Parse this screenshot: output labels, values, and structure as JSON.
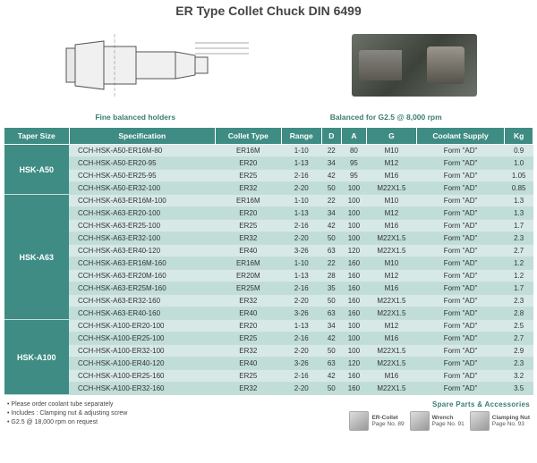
{
  "title": "ER Type Collet Chuck DIN 6499",
  "caption_left": "Fine balanced holders",
  "caption_right": "Balanced for G2.5 @ 8,000 rpm",
  "columns": [
    "Taper Size",
    "Specification",
    "Collet Type",
    "Range",
    "D",
    "A",
    "G",
    "Coolant Supply",
    "Kg"
  ],
  "groups": [
    {
      "taper": "HSK-A50",
      "rows": [
        [
          "CCH-HSK-A50-ER16M-80",
          "ER16M",
          "1-10",
          "22",
          "80",
          "M10",
          "Form \"AD\"",
          "0.9"
        ],
        [
          "CCH-HSK-A50-ER20-95",
          "ER20",
          "1-13",
          "34",
          "95",
          "M12",
          "Form \"AD\"",
          "1.0"
        ],
        [
          "CCH-HSK-A50-ER25-95",
          "ER25",
          "2-16",
          "42",
          "95",
          "M16",
          "Form \"AD\"",
          "1.05"
        ],
        [
          "CCH-HSK-A50-ER32-100",
          "ER32",
          "2-20",
          "50",
          "100",
          "M22X1.5",
          "Form \"AD\"",
          "0.85"
        ]
      ]
    },
    {
      "taper": "HSK-A63",
      "rows": [
        [
          "CCH-HSK-A63-ER16M-100",
          "ER16M",
          "1-10",
          "22",
          "100",
          "M10",
          "Form \"AD\"",
          "1.3"
        ],
        [
          "CCH-HSK-A63-ER20-100",
          "ER20",
          "1-13",
          "34",
          "100",
          "M12",
          "Form \"AD\"",
          "1.3"
        ],
        [
          "CCH-HSK-A63-ER25-100",
          "ER25",
          "2-16",
          "42",
          "100",
          "M16",
          "Form \"AD\"",
          "1.7"
        ],
        [
          "CCH-HSK-A63-ER32-100",
          "ER32",
          "2-20",
          "50",
          "100",
          "M22X1.5",
          "Form \"AD\"",
          "2.3"
        ],
        [
          "CCH-HSK-A63-ER40-120",
          "ER40",
          "3-26",
          "63",
          "120",
          "M22X1.5",
          "Form \"AD\"",
          "2.7"
        ],
        [
          "CCH-HSK-A63-ER16M-160",
          "ER16M",
          "1-10",
          "22",
          "160",
          "M10",
          "Form \"AD\"",
          "1.2"
        ],
        [
          "CCH-HSK-A63-ER20M-160",
          "ER20M",
          "1-13",
          "28",
          "160",
          "M12",
          "Form \"AD\"",
          "1.2"
        ],
        [
          "CCH-HSK-A63-ER25M-160",
          "ER25M",
          "2-16",
          "35",
          "160",
          "M16",
          "Form \"AD\"",
          "1.7"
        ],
        [
          "CCH-HSK-A63-ER32-160",
          "ER32",
          "2-20",
          "50",
          "160",
          "M22X1.5",
          "Form \"AD\"",
          "2.3"
        ],
        [
          "CCH-HSK-A63-ER40-160",
          "ER40",
          "3-26",
          "63",
          "160",
          "M22X1.5",
          "Form \"AD\"",
          "2.8"
        ]
      ]
    },
    {
      "taper": "HSK-A100",
      "rows": [
        [
          "CCH-HSK-A100-ER20-100",
          "ER20",
          "1-13",
          "34",
          "100",
          "M12",
          "Form \"AD\"",
          "2.5"
        ],
        [
          "CCH-HSK-A100-ER25-100",
          "ER25",
          "2-16",
          "42",
          "100",
          "M16",
          "Form \"AD\"",
          "2.7"
        ],
        [
          "CCH-HSK-A100-ER32-100",
          "ER32",
          "2-20",
          "50",
          "100",
          "M22X1.5",
          "Form \"AD\"",
          "2.9"
        ],
        [
          "CCH-HSK-A100-ER40-120",
          "ER40",
          "3-26",
          "63",
          "120",
          "M22X1.5",
          "Form \"AD\"",
          "2.3"
        ],
        [
          "CCH-HSK-A100-ER25-160",
          "ER25",
          "2-16",
          "42",
          "160",
          "M16",
          "Form \"AD\"",
          "3.2"
        ],
        [
          "CCH-HSK-A100-ER32-160",
          "ER32",
          "2-20",
          "50",
          "160",
          "M22X1.5",
          "Form \"AD\"",
          "3.5"
        ]
      ]
    }
  ],
  "notes": [
    "Please order coolant tube separately",
    "Includes : Clamping nut & adjusting screw",
    "G2.5 @ 18,000 rpm on request"
  ],
  "spare_title": "Spare Parts & Accessories",
  "spares": [
    {
      "name": "ER-Collet",
      "page": "Page No. 89"
    },
    {
      "name": "Wrench",
      "page": "Page No. 91"
    },
    {
      "name": "Clamping Nut",
      "page": "Page No. 93"
    }
  ]
}
